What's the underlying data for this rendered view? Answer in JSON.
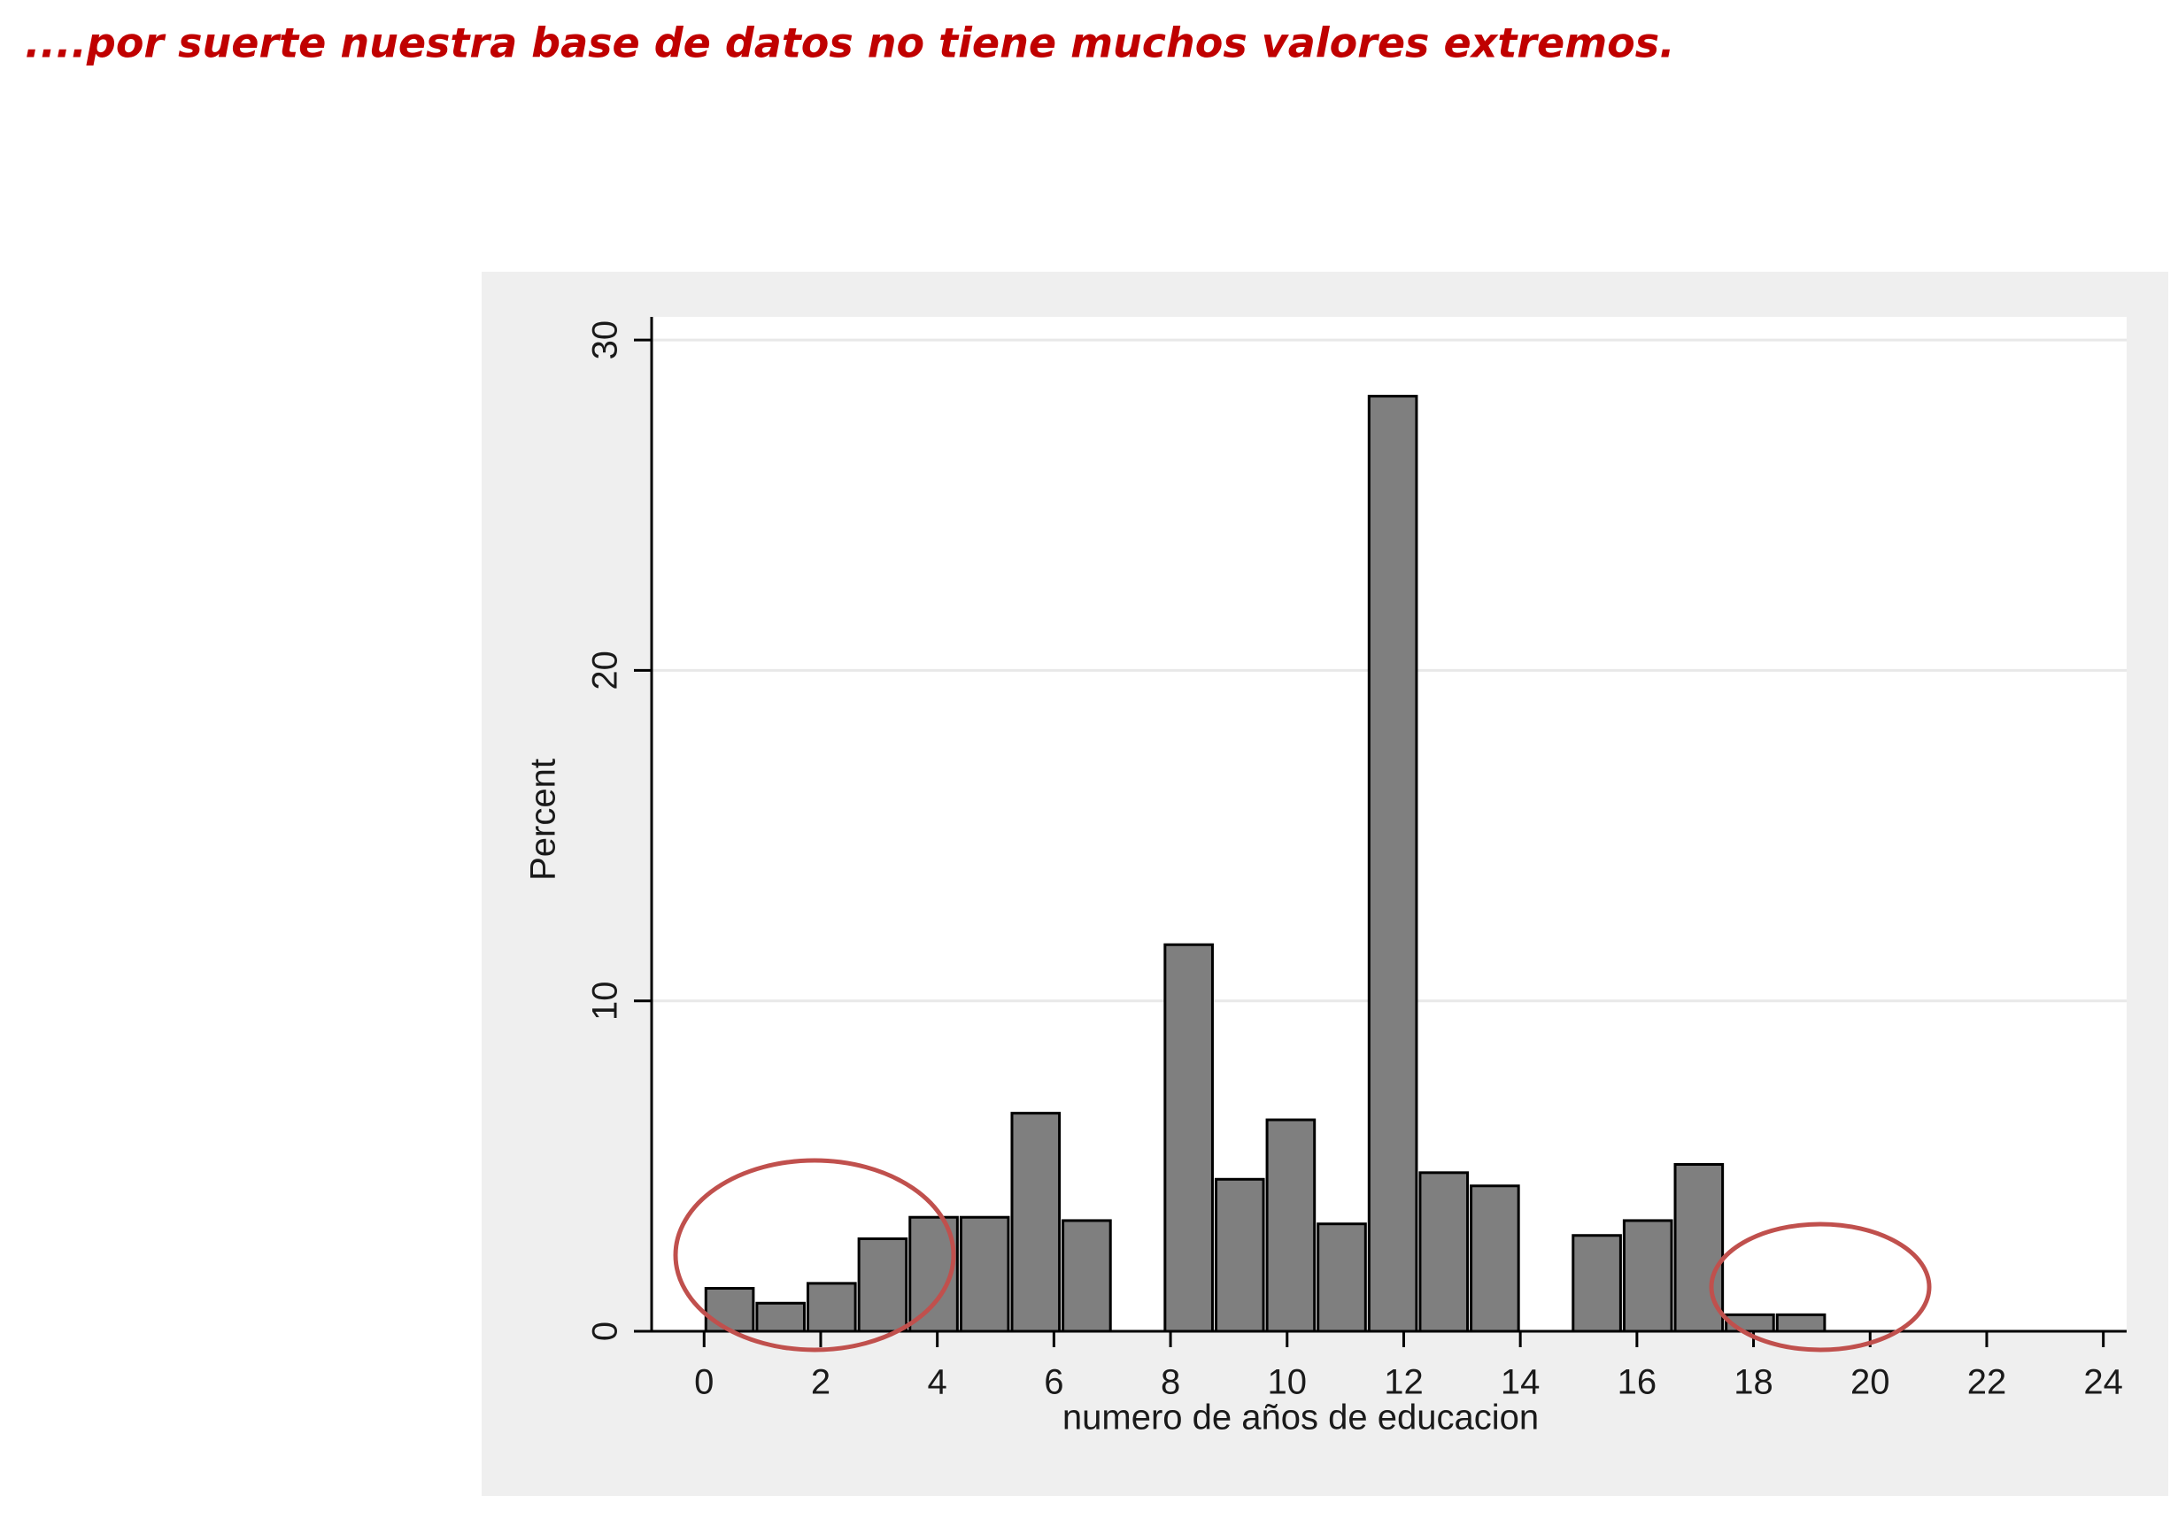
{
  "heading": "....por suerte nuestra base de datos no tiene muchos valores extremos.",
  "chart_data": {
    "type": "histogram",
    "xlabel": "numero de años de educacion",
    "ylabel": "Percent",
    "bins": [
      0,
      0.875,
      1.75,
      2.625,
      3.5,
      4.375,
      5.25,
      6.125,
      7.0,
      7.875,
      8.75,
      9.625,
      10.5,
      11.375,
      12.25,
      13.125,
      14.0,
      14.875,
      15.75,
      16.625,
      17.5,
      18.375,
      19.25
    ],
    "values": [
      1.3,
      0.85,
      1.45,
      2.8,
      3.45,
      3.45,
      6.6,
      3.35,
      0,
      11.7,
      4.6,
      6.4,
      3.25,
      28.3,
      4.8,
      4.4,
      0,
      2.9,
      3.35,
      5.05,
      0.5,
      0.5
    ],
    "color": "#7f7f7f",
    "xlim": [
      -0.9,
      24.4
    ],
    "ylim": [
      0,
      30.7
    ],
    "xticks": [
      0,
      2,
      4,
      6,
      8,
      10,
      12,
      14,
      16,
      18,
      20,
      22,
      24
    ],
    "yticks": [
      0,
      10,
      20,
      30
    ],
    "grid": true
  }
}
